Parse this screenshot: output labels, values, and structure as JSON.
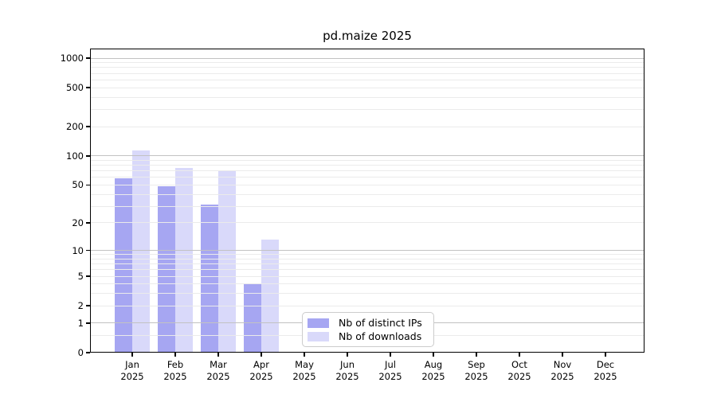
{
  "title": "pd.maize 2025",
  "colors": {
    "bar_distinct_ips": "#a6a6f2",
    "bar_downloads": "#d9d9fa",
    "grid_major": "#c2c2c2",
    "grid_minor": "#ebebeb",
    "axis": "#000000",
    "legend_border": "#cccccc",
    "background": "#ffffff"
  },
  "legend": {
    "items": [
      {
        "label": "Nb of distinct IPs",
        "color_key": "bar_distinct_ips"
      },
      {
        "label": "Nb of downloads",
        "color_key": "bar_downloads"
      }
    ],
    "position": "lower center"
  },
  "chart_data": {
    "type": "bar",
    "title": "pd.maize 2025",
    "categories": [
      "Jan",
      "Feb",
      "Mar",
      "Apr",
      "May",
      "Jun",
      "Jul",
      "Aug",
      "Sep",
      "Oct",
      "Nov",
      "Dec"
    ],
    "category_year": "2025",
    "series": [
      {
        "name": "Nb of distinct IPs",
        "color_key": "bar_distinct_ips",
        "values": [
          58,
          48,
          31,
          4,
          0,
          0,
          0,
          0,
          0,
          0,
          0,
          0
        ]
      },
      {
        "name": "Nb of downloads",
        "color_key": "bar_downloads",
        "values": [
          113,
          75,
          70,
          13,
          0,
          0,
          0,
          0,
          0,
          0,
          0,
          0
        ]
      }
    ],
    "xlabel": "",
    "ylabel": "",
    "y_scale": "log10(1+y)",
    "y_ticks_labeled": [
      0,
      1,
      2,
      5,
      10,
      20,
      50,
      100,
      200,
      500,
      1000
    ],
    "y_gridlines_major": [
      1,
      10,
      100,
      1000
    ],
    "y_gridlines_minor": [
      0.5,
      2,
      3,
      4,
      5,
      6,
      7,
      8,
      9,
      20,
      30,
      40,
      50,
      60,
      70,
      80,
      90,
      200,
      300,
      400,
      500,
      600,
      700,
      800,
      900
    ],
    "ylim": [
      0,
      1250
    ],
    "grid": "on",
    "legend_position": "lower center"
  }
}
